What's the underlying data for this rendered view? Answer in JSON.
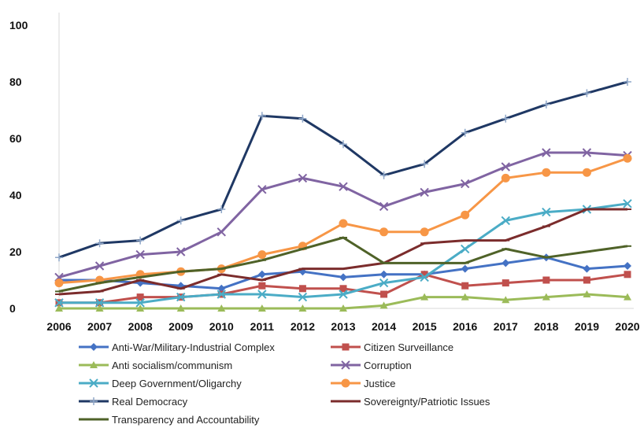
{
  "chart_data": {
    "type": "line",
    "title": "",
    "xlabel": "",
    "ylabel": "",
    "x": [
      "2006",
      "2007",
      "2008",
      "2009",
      "2010",
      "2011",
      "2012",
      "2013",
      "2014",
      "2015",
      "2016",
      "2017",
      "2018",
      "2019",
      "2020"
    ],
    "ylim": [
      0,
      100
    ],
    "yticks": [
      "0",
      "20",
      "40",
      "60",
      "80",
      "100"
    ],
    "grid": false,
    "legend_position": "bottom",
    "series": [
      {
        "name": "Anti-War/Military-Industrial Complex",
        "color": "#4472C4",
        "marker": "diamond",
        "values": [
          10,
          10,
          9,
          8,
          7,
          12,
          13,
          11,
          12,
          12,
          14,
          16,
          18,
          14,
          15
        ]
      },
      {
        "name": "Citizen Surveillance",
        "color": "#C0504D",
        "marker": "square",
        "values": [
          2,
          2,
          4,
          4,
          5,
          8,
          7,
          7,
          5,
          12,
          8,
          9,
          10,
          10,
          12
        ]
      },
      {
        "name": "Anti socialism/communism",
        "color": "#9BBB59",
        "marker": "triangle",
        "values": [
          0,
          0,
          0,
          0,
          0,
          0,
          0,
          0,
          1,
          4,
          4,
          3,
          4,
          5,
          4
        ]
      },
      {
        "name": "Corruption",
        "color": "#8064A2",
        "marker": "x",
        "values": [
          11,
          15,
          19,
          20,
          27,
          42,
          46,
          43,
          36,
          41,
          44,
          50,
          55,
          55,
          54
        ]
      },
      {
        "name": "Deep Government/Oligarchy",
        "color": "#4BACC6",
        "marker": "x",
        "values": [
          2,
          2,
          2,
          4,
          5,
          5,
          4,
          5,
          9,
          11,
          21,
          31,
          34,
          35,
          37
        ]
      },
      {
        "name": "Justice",
        "color": "#F79646",
        "marker": "circle",
        "values": [
          9,
          10,
          12,
          13,
          14,
          19,
          22,
          30,
          27,
          27,
          33,
          46,
          48,
          48,
          53
        ]
      },
      {
        "name": "Real Democracy",
        "color": "#1F3864",
        "marker": "star",
        "values": [
          18,
          23,
          24,
          31,
          35,
          68,
          67,
          58,
          47,
          51,
          62,
          67,
          72,
          76,
          80
        ]
      },
      {
        "name": "Sovereignty/Patriotic Issues",
        "color": "#7B2C2C",
        "marker": "dash",
        "values": [
          5,
          6,
          10,
          7,
          12,
          10,
          14,
          14,
          16,
          23,
          24,
          24,
          29,
          35,
          35
        ]
      },
      {
        "name": "Transparency and Accountability",
        "color": "#4F6228",
        "marker": "dash",
        "values": [
          6,
          9,
          11,
          13,
          14,
          17,
          21,
          25,
          16,
          16,
          16,
          21,
          18,
          20,
          22
        ]
      }
    ]
  }
}
